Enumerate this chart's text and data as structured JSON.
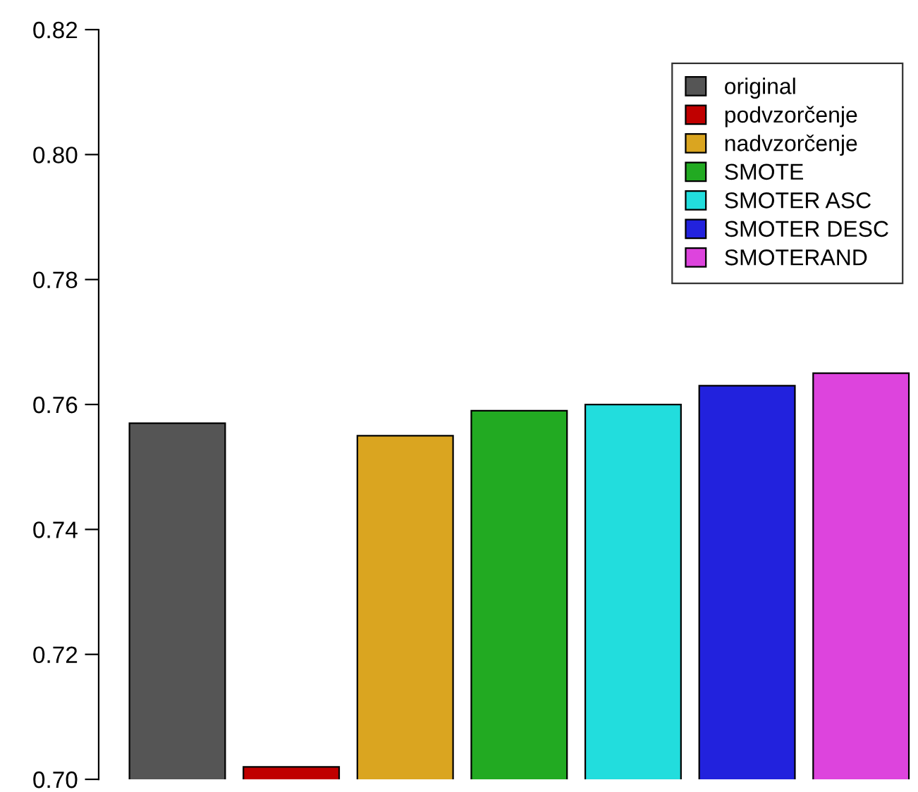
{
  "chart_data": {
    "type": "bar",
    "categories": [
      null
    ],
    "series": [
      {
        "name": "original",
        "color": "#555555",
        "values": [
          0.757
        ]
      },
      {
        "name": "podvzorčenje",
        "color": "#c00000",
        "values": [
          0.702
        ]
      },
      {
        "name": "nadvzorčenje",
        "color": "#daa520",
        "values": [
          0.755
        ]
      },
      {
        "name": "SMOTE",
        "color": "#22aa22",
        "values": [
          0.759
        ]
      },
      {
        "name": "SMOTER ASC",
        "color": "#22dddd",
        "values": [
          0.76
        ]
      },
      {
        "name": "SMOTER DESC",
        "color": "#2222dd",
        "values": [
          0.763
        ]
      },
      {
        "name": "SMOTERAND",
        "color": "#dd44dd",
        "values": [
          0.765
        ]
      }
    ],
    "ylim": [
      0.7,
      0.82
    ],
    "yticks": [
      {
        "value": 0.7,
        "label": "0.70"
      },
      {
        "value": 0.72,
        "label": "0.72"
      },
      {
        "value": 0.74,
        "label": "0.74"
      },
      {
        "value": 0.76,
        "label": "0.76"
      },
      {
        "value": 0.78,
        "label": "0.78"
      },
      {
        "value": 0.8,
        "label": "0.80"
      },
      {
        "value": 0.82,
        "label": "0.82"
      }
    ],
    "grid": false,
    "legend": "top right",
    "tick_labels": "y"
  }
}
